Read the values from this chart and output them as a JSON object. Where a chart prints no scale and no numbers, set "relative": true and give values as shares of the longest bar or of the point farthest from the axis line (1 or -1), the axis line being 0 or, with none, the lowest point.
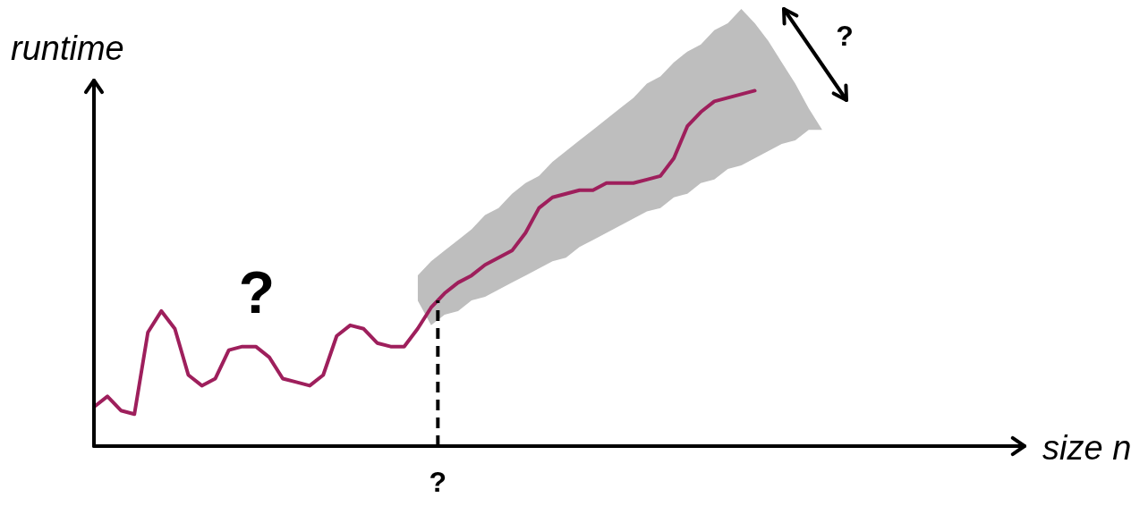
{
  "chart_data": {
    "type": "line",
    "relative": true,
    "ylabel": "runtime",
    "xlabel": "size n",
    "grid": false,
    "legend": false,
    "marker": "none",
    "line_style": "solid",
    "categories": [
      null,
      null,
      null,
      null,
      null,
      null,
      null,
      null,
      null,
      null,
      null,
      null,
      null,
      null,
      null,
      null,
      null,
      null,
      null,
      null,
      null,
      null,
      null,
      null,
      null,
      null,
      null,
      null,
      null,
      null,
      null,
      null,
      null,
      null,
      null,
      null,
      null,
      null,
      null,
      null,
      null,
      null,
      null,
      null,
      null,
      null,
      null,
      null,
      null,
      null,
      null,
      null,
      null,
      null,
      null,
      null,
      null,
      null,
      null,
      null,
      null,
      null,
      null,
      null,
      null,
      null,
      null,
      null,
      null,
      null
    ],
    "series": [
      {
        "color": "#9e1f5c",
        "values": [
          0.11,
          0.14,
          0.1,
          0.09,
          0.32,
          0.38,
          0.33,
          0.2,
          0.17,
          0.19,
          0.27,
          0.28,
          0.28,
          0.25,
          0.19,
          0.18,
          0.17,
          0.2,
          0.31,
          0.34,
          0.33,
          0.29,
          0.28,
          0.28,
          0.33,
          0.39,
          0.43,
          0.46,
          0.48,
          0.51,
          0.53,
          0.55,
          0.6,
          0.67,
          0.7,
          0.71,
          0.72,
          0.72,
          0.74,
          0.74,
          0.74,
          0.75,
          0.76,
          0.81,
          0.9,
          0.94,
          0.97,
          0.98,
          0.99,
          1,
          null,
          null,
          null,
          null,
          null,
          null,
          null,
          null,
          null,
          null,
          null,
          null,
          null,
          null,
          null,
          null,
          null,
          null,
          null,
          null
        ],
        "lower": [
          null,
          null,
          null,
          null,
          null,
          null,
          null,
          null,
          null,
          null,
          null,
          null,
          null,
          null,
          null,
          null,
          null,
          null,
          null,
          null,
          null,
          null,
          null,
          null,
          0.41,
          0.34,
          0.37,
          0.38,
          0.41,
          0.42,
          0.44,
          0.46,
          0.48,
          0.5,
          0.52,
          0.53,
          0.56,
          0.58,
          0.6,
          0.62,
          0.64,
          0.66,
          0.67,
          0.7,
          0.71,
          0.74,
          0.75,
          0.78,
          0.79,
          0.81,
          0.83,
          0.85,
          0.86,
          0.89,
          0.89,
          null,
          null,
          null,
          null,
          null,
          null,
          null,
          null,
          null,
          null,
          null,
          null,
          null,
          null,
          null
        ],
        "upper": [
          null,
          null,
          null,
          null,
          null,
          null,
          null,
          null,
          null,
          null,
          null,
          null,
          null,
          null,
          null,
          null,
          null,
          null,
          null,
          null,
          null,
          null,
          null,
          null,
          0.48,
          0.52,
          0.55,
          0.58,
          0.61,
          0.65,
          0.67,
          0.71,
          0.74,
          0.76,
          0.8,
          0.83,
          0.86,
          0.89,
          0.92,
          0.95,
          0.98,
          1.02,
          1.04,
          1.08,
          1.11,
          1.13,
          1.17,
          1.19,
          1.23,
          1.19,
          1.14,
          1.08,
          1.02,
          0.95,
          0.89,
          null,
          null,
          null,
          null,
          null,
          null,
          null,
          null,
          null,
          null,
          null,
          null,
          null,
          null,
          null
        ]
      }
    ],
    "annotations": [
      "?",
      "?",
      "?"
    ]
  }
}
